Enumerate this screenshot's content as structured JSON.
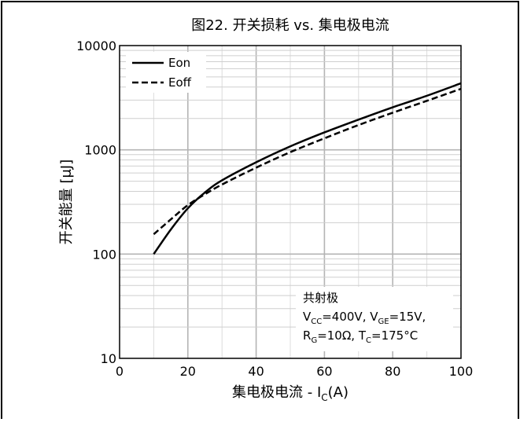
{
  "chart_data": {
    "type": "line",
    "title": "图22. 开关损耗 vs. 集电极电流",
    "xlabel_main": "集电极电流 - I",
    "xlabel_sub": "C",
    "xlabel_unit": "(A)",
    "ylabel": "开关能量 [μJ]",
    "xlim": [
      0,
      100
    ],
    "ylim": [
      10,
      10000
    ],
    "y_scale": "log",
    "x_ticks": [
      "0",
      "20",
      "40",
      "60",
      "80",
      "100"
    ],
    "y_ticks": [
      "10",
      "100",
      "1000",
      "10000"
    ],
    "grid": true,
    "legend_position": "top-left",
    "series": [
      {
        "name": "Eon",
        "style": "solid",
        "x": [
          10,
          15,
          20,
          25,
          30,
          40,
          50,
          60,
          70,
          80,
          90,
          100
        ],
        "y": [
          100,
          172,
          275,
          390,
          510,
          760,
          1080,
          1470,
          1950,
          2560,
          3300,
          4350
        ]
      },
      {
        "name": "Eoff",
        "style": "dashed",
        "x": [
          10,
          15,
          20,
          25,
          30,
          40,
          50,
          60,
          70,
          80,
          90,
          100
        ],
        "y": [
          155,
          215,
          295,
          375,
          465,
          675,
          950,
          1290,
          1730,
          2270,
          2950,
          3850
        ]
      }
    ],
    "conditions": {
      "line1": "共射极",
      "line2": [
        {
          "t": "V",
          "sub": false
        },
        {
          "t": "CC",
          "sub": true
        },
        {
          "t": "=400V, V",
          "sub": false
        },
        {
          "t": "GE",
          "sub": true
        },
        {
          "t": "=15V,",
          "sub": false
        }
      ],
      "line3": [
        {
          "t": "R",
          "sub": false
        },
        {
          "t": "G",
          "sub": true
        },
        {
          "t": "=10Ω,  T",
          "sub": false
        },
        {
          "t": "C",
          "sub": true
        },
        {
          "t": "=175°C",
          "sub": false
        }
      ]
    }
  }
}
